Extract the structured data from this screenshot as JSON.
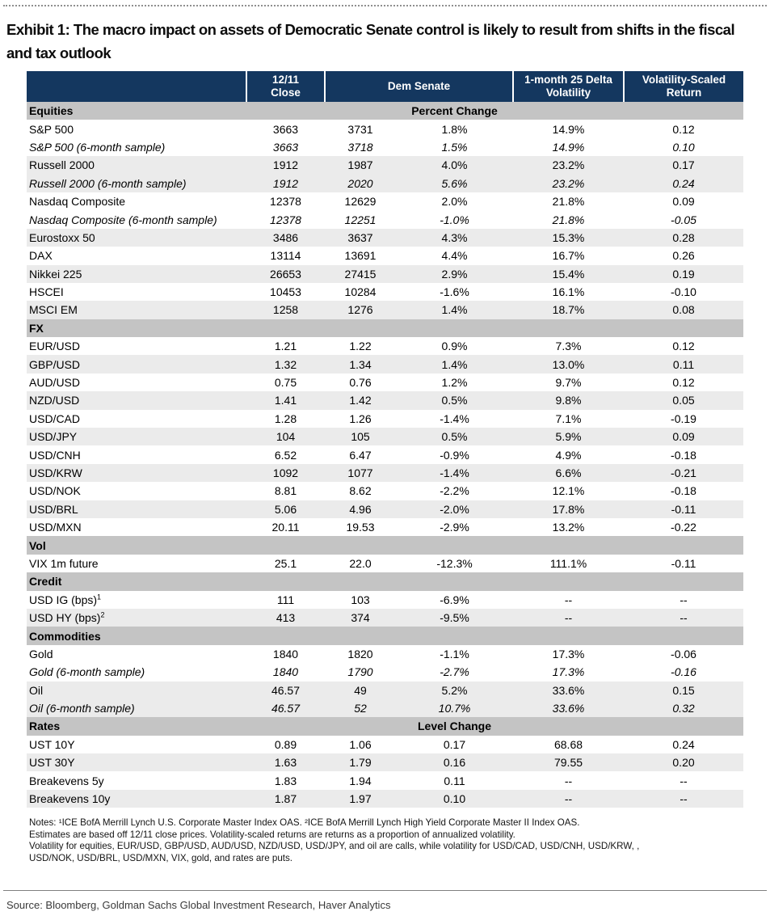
{
  "page": {
    "title": "Exhibit 1: The macro impact on assets of Democratic Senate control is likely to result from shifts in the fiscal and tax outlook",
    "source": "Source: Bloomberg, Goldman Sachs Global Investment Research, Haver Analytics"
  },
  "colors": {
    "header_bg": "#14375f",
    "section_bg": "#c4c4c4",
    "stripe_bg": "#ebebeb"
  },
  "table": {
    "header": {
      "close_line1": "12/11",
      "close_line2": "Close",
      "dem_senate": "Dem Senate",
      "volatility": "1-month 25 Delta Volatility",
      "vol_scaled": "Volatility-Scaled Return"
    },
    "sections": [
      {
        "name": "Equities",
        "center_label": "Percent Change",
        "rows": [
          {
            "label": "S&P 500",
            "sup": "",
            "italic": false,
            "shaded": false,
            "values": [
              "3663",
              "3731",
              "1.8%",
              "14.9%",
              "0.12"
            ]
          },
          {
            "label": "S&P 500 (6-month sample)",
            "sup": "",
            "italic": true,
            "shaded": false,
            "values": [
              "3663",
              "3718",
              "1.5%",
              "14.9%",
              "0.10"
            ]
          },
          {
            "label": "Russell 2000",
            "sup": "",
            "italic": false,
            "shaded": true,
            "values": [
              "1912",
              "1987",
              "4.0%",
              "23.2%",
              "0.17"
            ]
          },
          {
            "label": "Russell 2000 (6-month sample)",
            "sup": "",
            "italic": true,
            "shaded": true,
            "values": [
              "1912",
              "2020",
              "5.6%",
              "23.2%",
              "0.24"
            ]
          },
          {
            "label": "Nasdaq Composite",
            "sup": "",
            "italic": false,
            "shaded": false,
            "values": [
              "12378",
              "12629",
              "2.0%",
              "21.8%",
              "0.09"
            ]
          },
          {
            "label": "Nasdaq Composite (6-month sample)",
            "sup": "",
            "italic": true,
            "shaded": false,
            "values": [
              "12378",
              "12251",
              "-1.0%",
              "21.8%",
              "-0.05"
            ]
          },
          {
            "label": "Eurostoxx 50",
            "sup": "",
            "italic": false,
            "shaded": true,
            "values": [
              "3486",
              "3637",
              "4.3%",
              "15.3%",
              "0.28"
            ]
          },
          {
            "label": "DAX",
            "sup": "",
            "italic": false,
            "shaded": false,
            "values": [
              "13114",
              "13691",
              "4.4%",
              "16.7%",
              "0.26"
            ]
          },
          {
            "label": "Nikkei 225",
            "sup": "",
            "italic": false,
            "shaded": true,
            "values": [
              "26653",
              "27415",
              "2.9%",
              "15.4%",
              "0.19"
            ]
          },
          {
            "label": "HSCEI",
            "sup": "",
            "italic": false,
            "shaded": false,
            "values": [
              "10453",
              "10284",
              "-1.6%",
              "16.1%",
              "-0.10"
            ]
          },
          {
            "label": "MSCI EM",
            "sup": "",
            "italic": false,
            "shaded": true,
            "values": [
              "1258",
              "1276",
              "1.4%",
              "18.7%",
              "0.08"
            ]
          }
        ]
      },
      {
        "name": "FX",
        "center_label": "",
        "rows": [
          {
            "label": "EUR/USD",
            "sup": "",
            "italic": false,
            "shaded": false,
            "values": [
              "1.21",
              "1.22",
              "0.9%",
              "7.3%",
              "0.12"
            ]
          },
          {
            "label": "GBP/USD",
            "sup": "",
            "italic": false,
            "shaded": true,
            "values": [
              "1.32",
              "1.34",
              "1.4%",
              "13.0%",
              "0.11"
            ]
          },
          {
            "label": "AUD/USD",
            "sup": "",
            "italic": false,
            "shaded": false,
            "values": [
              "0.75",
              "0.76",
              "1.2%",
              "9.7%",
              "0.12"
            ]
          },
          {
            "label": "NZD/USD",
            "sup": "",
            "italic": false,
            "shaded": true,
            "values": [
              "1.41",
              "1.42",
              "0.5%",
              "9.8%",
              "0.05"
            ]
          },
          {
            "label": "USD/CAD",
            "sup": "",
            "italic": false,
            "shaded": false,
            "values": [
              "1.28",
              "1.26",
              "-1.4%",
              "7.1%",
              "-0.19"
            ]
          },
          {
            "label": "USD/JPY",
            "sup": "",
            "italic": false,
            "shaded": true,
            "values": [
              "104",
              "105",
              "0.5%",
              "5.9%",
              "0.09"
            ]
          },
          {
            "label": "USD/CNH",
            "sup": "",
            "italic": false,
            "shaded": false,
            "values": [
              "6.52",
              "6.47",
              "-0.9%",
              "4.9%",
              "-0.18"
            ]
          },
          {
            "label": "USD/KRW",
            "sup": "",
            "italic": false,
            "shaded": true,
            "values": [
              "1092",
              "1077",
              "-1.4%",
              "6.6%",
              "-0.21"
            ]
          },
          {
            "label": "USD/NOK",
            "sup": "",
            "italic": false,
            "shaded": false,
            "values": [
              "8.81",
              "8.62",
              "-2.2%",
              "12.1%",
              "-0.18"
            ]
          },
          {
            "label": "USD/BRL",
            "sup": "",
            "italic": false,
            "shaded": true,
            "values": [
              "5.06",
              "4.96",
              "-2.0%",
              "17.8%",
              "-0.11"
            ]
          },
          {
            "label": "USD/MXN",
            "sup": "",
            "italic": false,
            "shaded": false,
            "values": [
              "20.11",
              "19.53",
              "-2.9%",
              "13.2%",
              "-0.22"
            ]
          }
        ]
      },
      {
        "name": "Vol",
        "center_label": "",
        "rows": [
          {
            "label": "VIX 1m future",
            "sup": "",
            "italic": false,
            "shaded": false,
            "values": [
              "25.1",
              "22.0",
              "-12.3%",
              "111.1%",
              "-0.11"
            ]
          }
        ]
      },
      {
        "name": "Credit",
        "center_label": "",
        "rows": [
          {
            "label": "USD IG (bps)",
            "sup": "1",
            "italic": false,
            "shaded": false,
            "values": [
              "111",
              "103",
              "-6.9%",
              "--",
              "--"
            ]
          },
          {
            "label": "USD HY (bps)",
            "sup": "2",
            "italic": false,
            "shaded": true,
            "values": [
              "413",
              "374",
              "-9.5%",
              "--",
              "--"
            ]
          }
        ]
      },
      {
        "name": "Commodities",
        "center_label": "",
        "rows": [
          {
            "label": "Gold",
            "sup": "",
            "italic": false,
            "shaded": false,
            "values": [
              "1840",
              "1820",
              "-1.1%",
              "17.3%",
              "-0.06"
            ]
          },
          {
            "label": "Gold (6-month sample)",
            "sup": "",
            "italic": true,
            "shaded": false,
            "values": [
              "1840",
              "1790",
              "-2.7%",
              "17.3%",
              "-0.16"
            ]
          },
          {
            "label": "Oil",
            "sup": "",
            "italic": false,
            "shaded": true,
            "values": [
              "46.57",
              "49",
              "5.2%",
              "33.6%",
              "0.15"
            ]
          },
          {
            "label": "Oil (6-month sample)",
            "sup": "",
            "italic": true,
            "shaded": true,
            "values": [
              "46.57",
              "52",
              "10.7%",
              "33.6%",
              "0.32"
            ]
          }
        ]
      },
      {
        "name": "Rates",
        "center_label": "Level Change",
        "rows": [
          {
            "label": "UST 10Y",
            "sup": "",
            "italic": false,
            "shaded": false,
            "values": [
              "0.89",
              "1.06",
              "0.17",
              "68.68",
              "0.24"
            ]
          },
          {
            "label": "UST 30Y",
            "sup": "",
            "italic": false,
            "shaded": true,
            "values": [
              "1.63",
              "1.79",
              "0.16",
              "79.55",
              "0.20"
            ]
          },
          {
            "label": "Breakevens 5y",
            "sup": "",
            "italic": false,
            "shaded": false,
            "values": [
              "1.83",
              "1.94",
              "0.11",
              "--",
              "--"
            ]
          },
          {
            "label": "Breakevens 10y",
            "sup": "",
            "italic": false,
            "shaded": true,
            "values": [
              "1.87",
              "1.97",
              "0.10",
              "--",
              "--"
            ]
          }
        ]
      }
    ]
  },
  "notes": {
    "lines": [
      "Notes: ¹ICE BofA Merrill Lynch U.S. Corporate Master Index OAS. ²ICE BofA Merrill Lynch High Yield Corporate Master II Index OAS.",
      "Estimates are based off 12/11 close prices. Volatility-scaled returns are returns as a proportion of annualized volatility.",
      "Volatility for equities, EUR/USD, GBP/USD, AUD/USD, NZD/USD, USD/JPY, and oil are calls, while volatility for USD/CAD, USD/CNH, USD/KRW, ,",
      "USD/NOK, USD/BRL, USD/MXN, VIX, gold, and rates are puts."
    ]
  }
}
